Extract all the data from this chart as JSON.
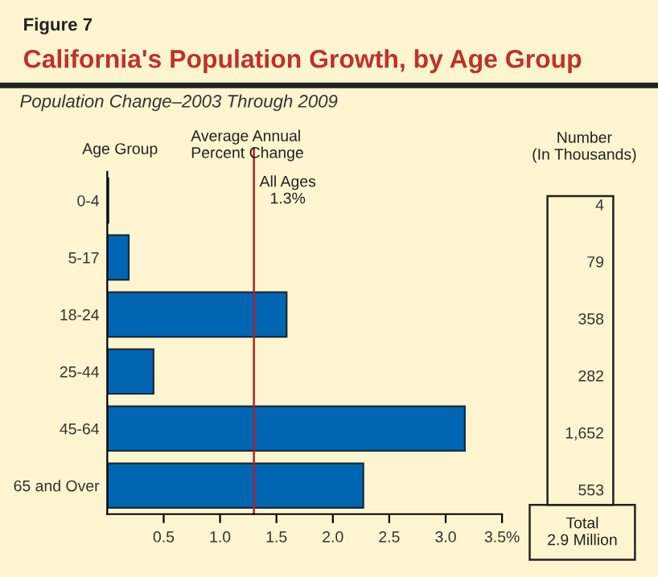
{
  "chart_data": {
    "type": "bar",
    "orientation": "horizontal",
    "title": "California's Population Growth, by Age Group",
    "subtitle": "Population Change–2003 Through 2009",
    "xlabel": "Average Annual\nPercent Change",
    "ylabel": "Age Group",
    "categories": [
      "0-4",
      "5-17",
      "18-24",
      "25-44",
      "45-64",
      "65 and Over"
    ],
    "values": [
      0.01,
      0.19,
      1.59,
      0.41,
      3.17,
      2.27
    ],
    "color": "#0066b3",
    "xlim": [
      0,
      3.5
    ],
    "xticks": [
      0.5,
      {
        "value": 1.0,
        "label": "1.0"
      },
      1.5,
      {
        "value": 2.0,
        "label": "2.0"
      },
      2.5,
      {
        "value": 3.0,
        "label": "3.0"
      },
      {
        "value": 3.5,
        "label": "3.5%"
      }
    ],
    "ref_lines": [
      {
        "axis": "x",
        "value": 1.3,
        "label": "All Ages\n1.3%",
        "color": "#b22222"
      }
    ],
    "annotations": [
      "Figure 7",
      "Number\n(In Thousands)",
      "4",
      "79",
      "358",
      "282",
      "1,652",
      "553",
      "Total\n2.9 Million"
    ],
    "grid": false,
    "legend": false
  }
}
